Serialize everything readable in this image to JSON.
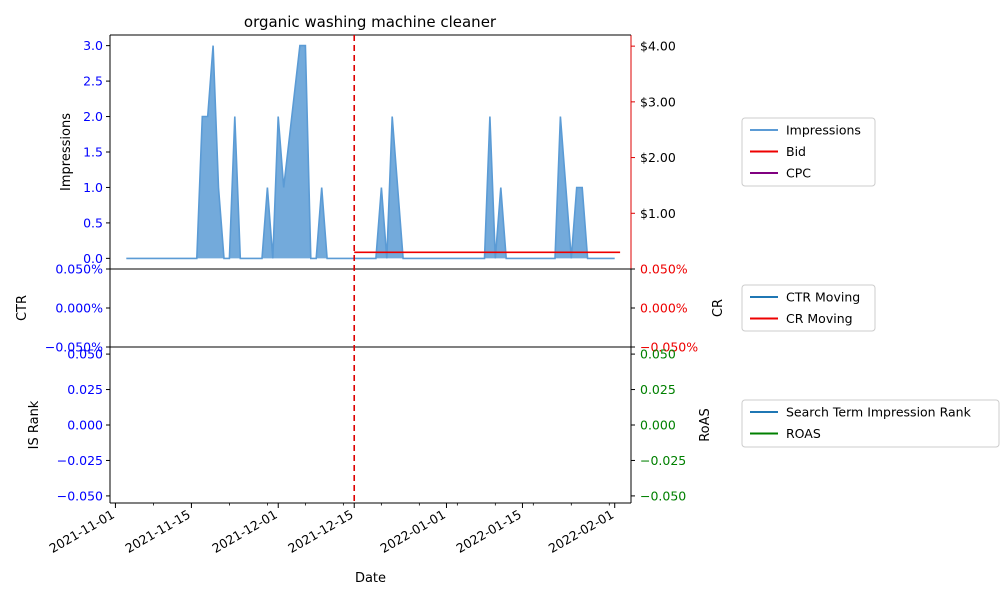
{
  "chart_data": {
    "type": "line",
    "title": "organic washing machine cleaner",
    "xlabel": "Date",
    "x_ticks": [
      "2021-11-01",
      "2021-11-15",
      "2021-12-01",
      "2021-12-15",
      "2022-01-01",
      "2022-01-15",
      "2022-02-01"
    ],
    "xlim": [
      "2021-10-31",
      "2022-02-04"
    ],
    "event_line": {
      "date": "2021-12-15",
      "color": "#dd0000",
      "style": "dashed"
    },
    "panels": [
      {
        "name": "impressions",
        "ylabel_left": "Impressions",
        "ylim_left": [
          -0.15,
          3.15
        ],
        "yticks_left": [
          "0.0",
          "0.5",
          "1.0",
          "1.5",
          "2.0",
          "2.5",
          "3.0"
        ],
        "left_tick_color": "#0000ff",
        "ylabel_right": "",
        "ylim_right": [
          0,
          4.2
        ],
        "yticks_right": [
          "$1.00",
          "$2.00",
          "$3.00",
          "$4.00"
        ],
        "right_tick_color": "#000000",
        "right_spine_color": "#dd0000",
        "series": [
          {
            "name": "Impressions",
            "color": "#5b9bd5",
            "fill": true,
            "axis": "left",
            "points": [
              [
                "2021-11-03",
                0
              ],
              [
                "2021-11-16",
                0
              ],
              [
                "2021-11-17",
                2
              ],
              [
                "2021-11-18",
                2
              ],
              [
                "2021-11-19",
                3
              ],
              [
                "2021-11-20",
                1
              ],
              [
                "2021-11-21",
                0
              ],
              [
                "2021-11-22",
                0
              ],
              [
                "2021-11-23",
                2
              ],
              [
                "2021-11-24",
                0
              ],
              [
                "2021-11-28",
                0
              ],
              [
                "2021-11-29",
                1
              ],
              [
                "2021-11-30",
                0
              ],
              [
                "2021-12-01",
                2
              ],
              [
                "2021-12-02",
                1
              ],
              [
                "2021-12-05",
                3
              ],
              [
                "2021-12-06",
                3
              ],
              [
                "2021-12-07",
                0
              ],
              [
                "2021-12-08",
                0
              ],
              [
                "2021-12-09",
                1
              ],
              [
                "2021-12-10",
                0
              ],
              [
                "2021-12-19",
                0
              ],
              [
                "2021-12-20",
                1
              ],
              [
                "2021-12-21",
                0
              ],
              [
                "2021-12-22",
                2
              ],
              [
                "2021-12-24",
                0
              ],
              [
                "2022-01-08",
                0
              ],
              [
                "2022-01-09",
                2
              ],
              [
                "2022-01-10",
                0
              ],
              [
                "2022-01-11",
                1
              ],
              [
                "2022-01-12",
                0
              ],
              [
                "2022-01-21",
                0
              ],
              [
                "2022-01-22",
                2
              ],
              [
                "2022-01-24",
                0
              ],
              [
                "2022-01-25",
                1
              ],
              [
                "2022-01-26",
                1
              ],
              [
                "2022-01-27",
                0
              ],
              [
                "2022-02-01",
                0
              ]
            ]
          },
          {
            "name": "Bid",
            "color": "#ee0000",
            "fill": false,
            "axis": "right",
            "points": [
              [
                "2021-12-15",
                0.3
              ],
              [
                "2022-02-02",
                0.3
              ]
            ]
          },
          {
            "name": "CPC",
            "color": "#800080",
            "fill": false,
            "axis": "right",
            "points": []
          }
        ]
      },
      {
        "name": "ctr-cr",
        "ylabel_left": "CTR",
        "ylim_left": [
          -0.05,
          0.05
        ],
        "yticks_left": [
          "−0.050%",
          "0.000%",
          "0.050%"
        ],
        "left_tick_color": "#0000ff",
        "ylabel_right": "CR",
        "ylim_right": [
          -0.05,
          0.05
        ],
        "yticks_right": [
          "−0.050%",
          "0.000%",
          "0.050%"
        ],
        "right_tick_color": "#ee0000",
        "series": [
          {
            "name": "CTR Moving",
            "color": "#1f77b4",
            "axis": "left",
            "points": []
          },
          {
            "name": "CR Moving",
            "color": "#ee0000",
            "axis": "right",
            "points": []
          }
        ]
      },
      {
        "name": "rank-roas",
        "ylabel_left": "IS Rank",
        "ylim_left": [
          -0.055,
          0.055
        ],
        "yticks_left": [
          "−0.050",
          "−0.025",
          "0.000",
          "0.025",
          "0.050"
        ],
        "left_tick_color": "#0000ff",
        "ylabel_right": "RoAS",
        "ylim_right": [
          -0.055,
          0.055
        ],
        "yticks_right": [
          "−0.050",
          "−0.025",
          "0.000",
          "0.025",
          "0.050"
        ],
        "right_tick_color": "#008000",
        "series": [
          {
            "name": "Search Term Impression Rank",
            "color": "#1f77b4",
            "axis": "left",
            "points": []
          },
          {
            "name": "ROAS",
            "color": "#008000",
            "axis": "right",
            "points": []
          }
        ]
      }
    ],
    "legend_placement": "right of each panel"
  }
}
